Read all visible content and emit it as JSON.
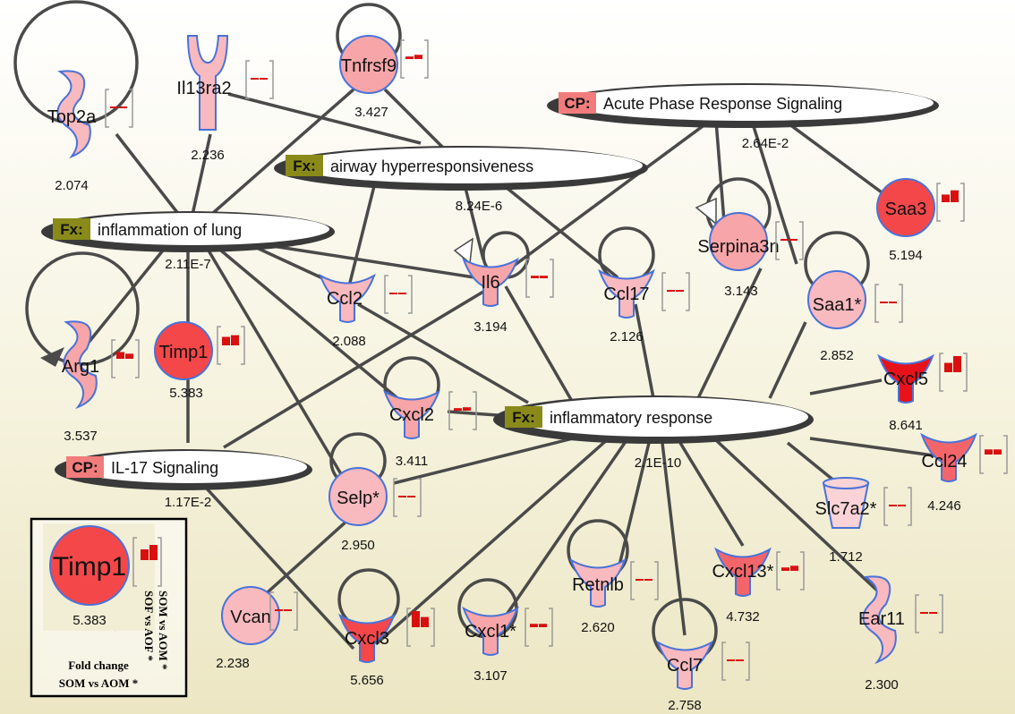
{
  "legend": {
    "gene": "Timp1",
    "value": "5.383",
    "caption_line1": "Fold change",
    "caption_line2": "SOM vs AOM *",
    "rotated_line1": "SOM vs AOM *",
    "rotated_line2": "SOF vs AOF *"
  },
  "pathways": [
    {
      "id": "p-acute",
      "tag": "CP:",
      "label": "Acute Phase Response Signaling",
      "pvalue": "2.64E-2"
    },
    {
      "id": "p-airway",
      "tag": "Fx:",
      "label": "airway hyperresponsiveness",
      "pvalue": "8.24E-6"
    },
    {
      "id": "p-lung",
      "tag": "Fx:",
      "label": "inflammation of lung",
      "pvalue": "2.11E-7"
    },
    {
      "id": "p-infl",
      "tag": "Fx:",
      "label": "inflammatory response",
      "pvalue": "2.1E-10"
    },
    {
      "id": "p-il17",
      "tag": "CP:",
      "label": "IL-17 Signaling",
      "pvalue": "1.17E-2"
    }
  ],
  "genes": [
    {
      "id": "g-top2a",
      "label": "Top2a",
      "value": "2.074",
      "shape": "enzyme",
      "color": "#f8b9bf",
      "bars": [
        0.1,
        0.1
      ]
    },
    {
      "id": "g-il13ra2",
      "label": "Il13ra2",
      "value": "2.236",
      "shape": "receptor",
      "color": "#f8b9bf",
      "bars": [
        0.1,
        0.1
      ]
    },
    {
      "id": "g-tnfrsf9",
      "label": "Tnfrsf9",
      "value": "3.427",
      "shape": "circle",
      "color": "#f7a5a8",
      "bars": [
        0.15,
        0.25
      ]
    },
    {
      "id": "g-saa3",
      "label": "Saa3",
      "value": "5.194",
      "shape": "circle",
      "color": "#f4474a",
      "bars": [
        0.45,
        0.7
      ]
    },
    {
      "id": "g-serpina3n",
      "label": "Serpina3n",
      "value": "3.143",
      "shape": "circle",
      "color": "#f7a5a8",
      "bars": [
        0.1,
        0.1
      ]
    },
    {
      "id": "g-saa1",
      "label": "Saa1*",
      "value": "2.852",
      "shape": "circle",
      "color": "#f8b9bf",
      "bars": [
        0.1,
        0.1
      ]
    },
    {
      "id": "g-ccl2",
      "label": "Ccl2",
      "value": "2.088",
      "shape": "cytokine",
      "color": "#f8b9bf",
      "bars": [
        0.1,
        0.1
      ]
    },
    {
      "id": "g-il6",
      "label": "Il6",
      "value": "3.194",
      "shape": "cytokine",
      "color": "#f7a5a8",
      "bars": [
        0.15,
        0.15
      ]
    },
    {
      "id": "g-ccl17",
      "label": "Ccl17",
      "value": "2.126",
      "shape": "cytokine",
      "color": "#f8b9bf",
      "bars": [
        0.05,
        0.05
      ]
    },
    {
      "id": "g-arg1",
      "label": "Arg1",
      "value": "3.537",
      "shape": "enzyme",
      "color": "#f7a5a8",
      "bars": [
        0.4,
        0.3
      ]
    },
    {
      "id": "g-timp1",
      "label": "Timp1",
      "value": "5.383",
      "shape": "circle",
      "color": "#f4474a",
      "bars": [
        0.5,
        0.6
      ]
    },
    {
      "id": "g-cxcl2",
      "label": "Cxcl2",
      "value": "3.411",
      "shape": "cytokine",
      "color": "#f7a5a8",
      "bars": [
        0.15,
        0.2
      ]
    },
    {
      "id": "g-cxcl5",
      "label": "Cxcl5",
      "value": "8.641",
      "shape": "cytokine",
      "color": "#e8121a",
      "bars": [
        0.55,
        0.95
      ]
    },
    {
      "id": "g-ccl24",
      "label": "Ccl24",
      "value": "4.246",
      "shape": "cytokine",
      "color": "#f4656a",
      "bars": [
        0.3,
        0.3
      ]
    },
    {
      "id": "g-selp",
      "label": "Selp*",
      "value": "2.950",
      "shape": "circle",
      "color": "#f8b9bf",
      "bars": [
        0.1,
        0.1
      ]
    },
    {
      "id": "g-slc7a2",
      "label": "Slc7a2*",
      "value": "1.712",
      "shape": "transporter",
      "color": "#fbd3d6",
      "bars": [
        0.05,
        0.05
      ]
    },
    {
      "id": "g-vcan",
      "label": "Vcan",
      "value": "2.238",
      "shape": "circle",
      "color": "#f8b9bf",
      "bars": [
        0.1,
        0.1
      ]
    },
    {
      "id": "g-cxcl3",
      "label": "Cxcl3",
      "value": "5.656",
      "shape": "cytokine",
      "color": "#f4474a",
      "bars": [
        0.95,
        0.6
      ]
    },
    {
      "id": "g-cxcl1",
      "label": "Cxcl1*",
      "value": "3.107",
      "shape": "cytokine",
      "color": "#f7a5a8",
      "bars": [
        0.2,
        0.2
      ]
    },
    {
      "id": "g-retnlb",
      "label": "Retnlb",
      "value": "2.620",
      "shape": "cytokine",
      "color": "#f8b9bf",
      "bars": [
        0.1,
        0.1
      ]
    },
    {
      "id": "g-cxcl13",
      "label": "Cxcl13*",
      "value": "4.732",
      "shape": "cytokine",
      "color": "#f4656a",
      "bars": [
        0.2,
        0.3
      ]
    },
    {
      "id": "g-ccl7",
      "label": "Ccl7",
      "value": "2.758",
      "shape": "cytokine",
      "color": "#f8b9bf",
      "bars": [
        0.1,
        0.1
      ]
    },
    {
      "id": "g-ear11",
      "label": "Ear11",
      "value": "2.300",
      "shape": "enzyme",
      "color": "#f8b9bf",
      "bars": [
        0.1,
        0.1
      ]
    }
  ],
  "colors": {
    "fx_tag": "#8a8a1a",
    "cp_tag": "#f27c7c",
    "node_outline": "#4a72d8",
    "edge": "#4a4a4a",
    "bar": "#d81010"
  }
}
